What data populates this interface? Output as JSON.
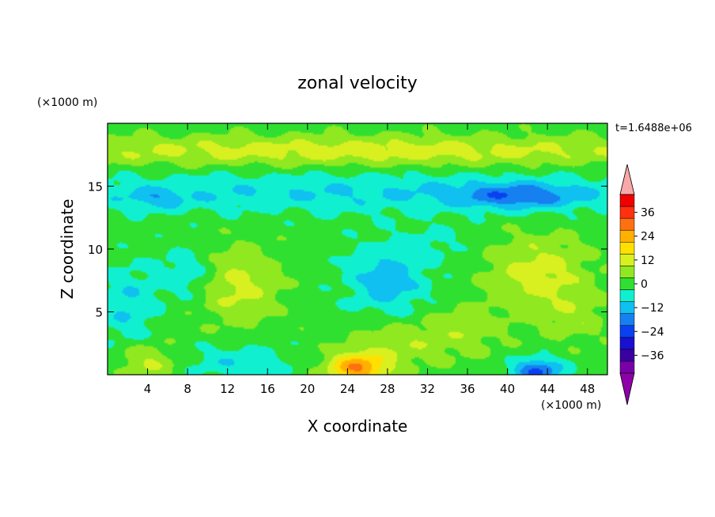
{
  "chart_data": {
    "type": "heatmap",
    "title": "zonal velocity",
    "xlabel": "X coordinate",
    "ylabel": "Z coordinate",
    "x_unit_label": "(×1000 m)",
    "y_unit_label": "(×1000 m)",
    "time_label": "t=1.6488e+06",
    "xlim": [
      0,
      50
    ],
    "ylim": [
      0,
      20
    ],
    "x_ticks": [
      4,
      8,
      12,
      16,
      20,
      24,
      28,
      32,
      36,
      40,
      44,
      48
    ],
    "y_ticks": [
      5,
      10,
      15
    ],
    "colorbar": {
      "levels": [
        -42,
        -36,
        -30,
        -24,
        -18,
        -12,
        -6,
        0,
        6,
        12,
        18,
        24,
        30,
        36,
        42
      ],
      "labels": [
        -36,
        -24,
        -12,
        0,
        12,
        24,
        36
      ],
      "colors": [
        "#7a00a8",
        "#3a00a0",
        "#1a10d0",
        "#0a40f0",
        "#1680f0",
        "#10c0f0",
        "#10f0d0",
        "#30e030",
        "#90e820",
        "#d8f020",
        "#ffe000",
        "#ffb000",
        "#ff7010",
        "#ff3010",
        "#f00000"
      ],
      "under_color": "#8e00a8",
      "over_color": "#f8a8a8"
    },
    "field_features": [
      {
        "x": 25,
        "z": 17.8,
        "u": 12,
        "sx": 40,
        "sz": 1.2
      },
      {
        "x": 25,
        "z": 14.5,
        "u": -9,
        "sx": 40,
        "sz": 1.6
      },
      {
        "x": 41,
        "z": 14.2,
        "u": -14,
        "sx": 6,
        "sz": 1.0
      },
      {
        "x": 5,
        "z": 14.0,
        "u": -8,
        "sx": 3,
        "sz": 0.8
      },
      {
        "x": 13,
        "z": 7.0,
        "u": 11,
        "sx": 4,
        "sz": 3.0
      },
      {
        "x": 2,
        "z": 5.5,
        "u": -9,
        "sx": 3,
        "sz": 3.0
      },
      {
        "x": 8,
        "z": 8.0,
        "u": -8,
        "sx": 3,
        "sz": 2.0
      },
      {
        "x": 28,
        "z": 7.5,
        "u": -12,
        "sx": 4,
        "sz": 3.0
      },
      {
        "x": 43,
        "z": 8.0,
        "u": 12,
        "sx": 5,
        "sz": 3.0
      },
      {
        "x": 33,
        "z": 10.5,
        "u": -4,
        "sx": 3,
        "sz": 1.5
      },
      {
        "x": 25,
        "z": 0.5,
        "u": 26,
        "sx": 3,
        "sz": 1.2
      },
      {
        "x": 29,
        "z": 2.5,
        "u": 8,
        "sx": 5,
        "sz": 2.0
      },
      {
        "x": 43,
        "z": 0.3,
        "u": -22,
        "sx": 2.5,
        "sz": 1.0
      },
      {
        "x": 13,
        "z": 1.0,
        "u": -8,
        "sx": 5,
        "sz": 1.5
      },
      {
        "x": 4,
        "z": 1.0,
        "u": 10,
        "sx": 3,
        "sz": 1.5
      },
      {
        "x": 47,
        "z": 4.5,
        "u": 6,
        "sx": 3,
        "sz": 2.0
      },
      {
        "x": 36,
        "z": 3.5,
        "u": 6,
        "sx": 4,
        "sz": 2.0
      }
    ]
  }
}
